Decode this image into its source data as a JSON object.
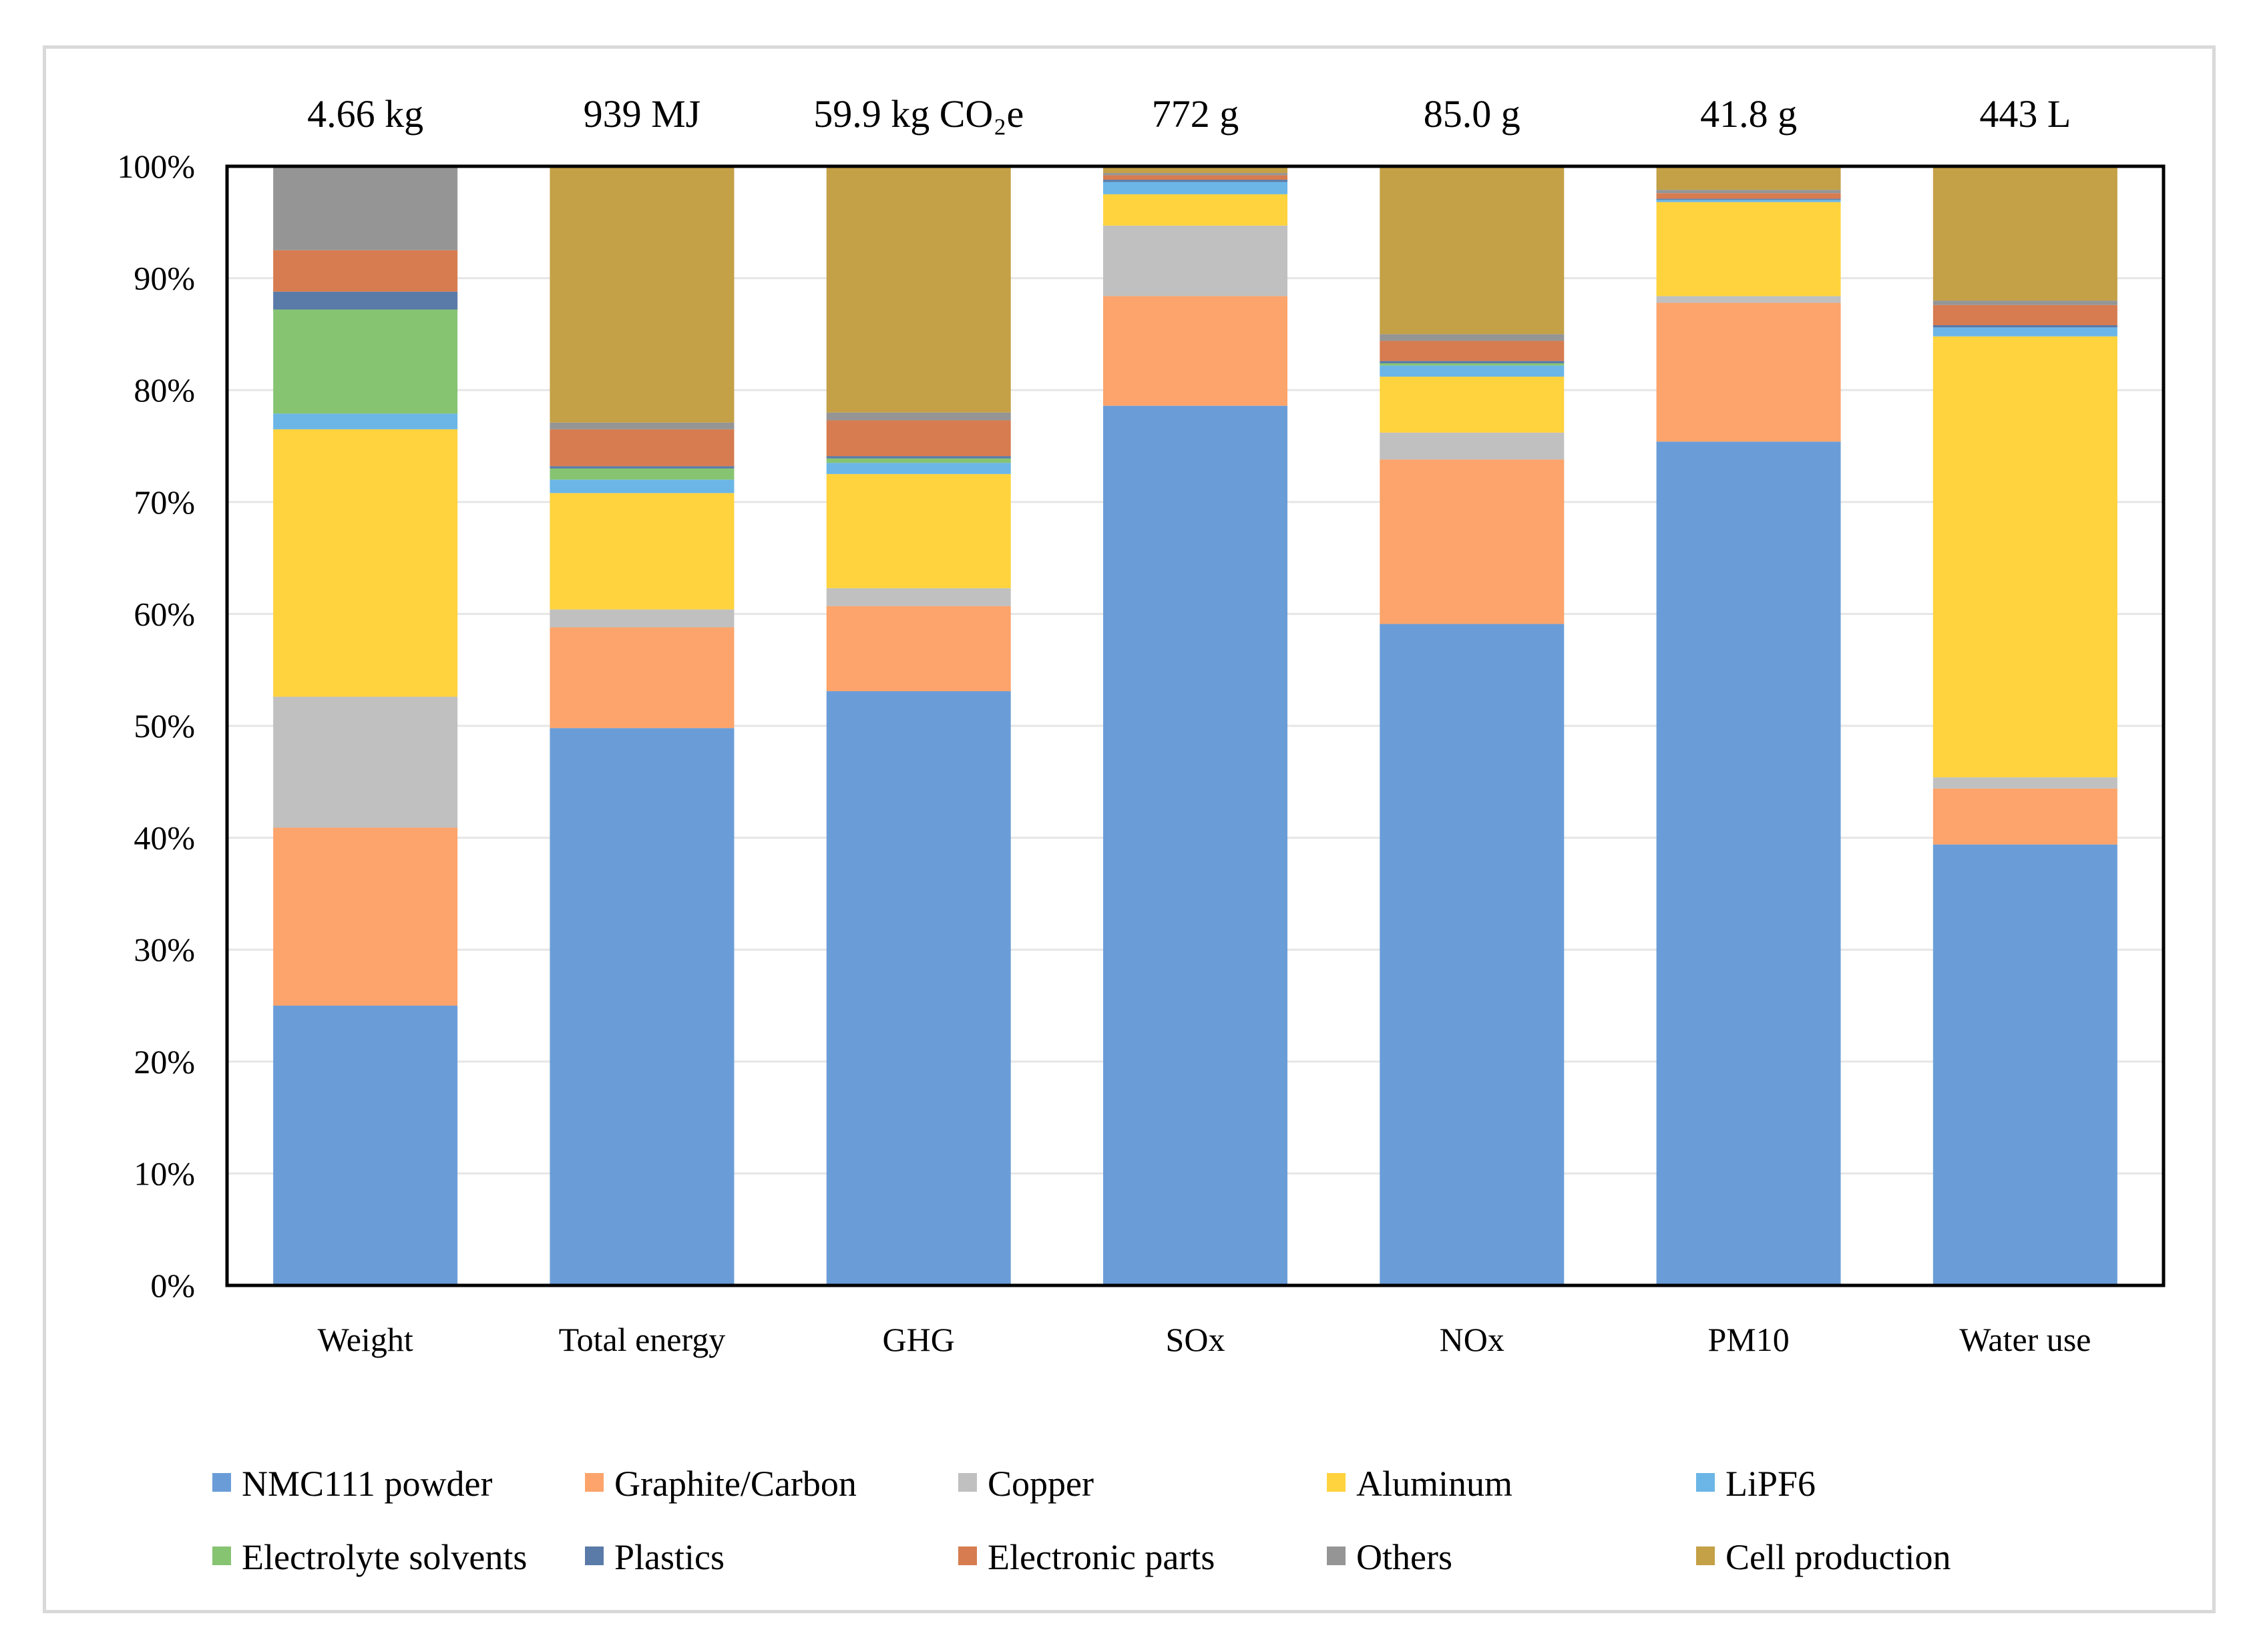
{
  "chart_data": {
    "type": "bar",
    "stacked": true,
    "percent": true,
    "categories": [
      "Weight",
      "Total energy",
      "GHG",
      "SOx",
      "NOx",
      "PM10",
      "Water use"
    ],
    "totals": [
      "4.66 kg",
      "939 MJ",
      "59.9 kg CO₂e",
      "772 g",
      "85.0 g",
      "41.8 g",
      "443 L"
    ],
    "yticks": [
      "0%",
      "10%",
      "20%",
      "30%",
      "40%",
      "50%",
      "60%",
      "70%",
      "80%",
      "90%",
      "100%"
    ],
    "ylim": [
      0,
      100
    ],
    "grid": true,
    "legend_position": "bottom",
    "series": [
      {
        "name": "NMC111 powder",
        "color": "#6a9dd8",
        "values": [
          25.0,
          49.8,
          53.1,
          78.6,
          59.1,
          75.4,
          39.4
        ]
      },
      {
        "name": "Graphite/Carbon",
        "color": "#fca46b",
        "values": [
          15.9,
          9.0,
          7.6,
          9.8,
          14.7,
          12.4,
          5.0
        ]
      },
      {
        "name": "Copper",
        "color": "#c0c0c0",
        "values": [
          11.7,
          1.6,
          1.6,
          6.3,
          2.4,
          0.6,
          1.0
        ]
      },
      {
        "name": "Aluminum",
        "color": "#ffd33d",
        "values": [
          23.9,
          10.4,
          10.2,
          2.8,
          5.0,
          8.4,
          39.4
        ]
      },
      {
        "name": "LiPF6",
        "color": "#6bb6e6",
        "values": [
          1.4,
          1.2,
          1.0,
          1.1,
          1.0,
          0.2,
          0.8
        ]
      },
      {
        "name": "Electrolyte solvents",
        "color": "#87c472",
        "values": [
          9.3,
          1.0,
          0.4,
          0.0,
          0.2,
          0.0,
          0.0
        ]
      },
      {
        "name": "Plastics",
        "color": "#5a7aa8",
        "values": [
          1.6,
          0.2,
          0.2,
          0.2,
          0.2,
          0.1,
          0.2
        ]
      },
      {
        "name": "Electronic parts",
        "color": "#d67c50",
        "values": [
          3.7,
          3.3,
          3.2,
          0.4,
          1.8,
          0.5,
          1.8
        ]
      },
      {
        "name": "Others",
        "color": "#959595",
        "values": [
          7.5,
          0.6,
          0.7,
          0.2,
          0.6,
          0.3,
          0.4
        ]
      },
      {
        "name": "Cell production",
        "color": "#c4a046",
        "values": [
          0.0,
          22.9,
          22.0,
          0.6,
          15.0,
          2.1,
          12.0
        ]
      }
    ]
  }
}
